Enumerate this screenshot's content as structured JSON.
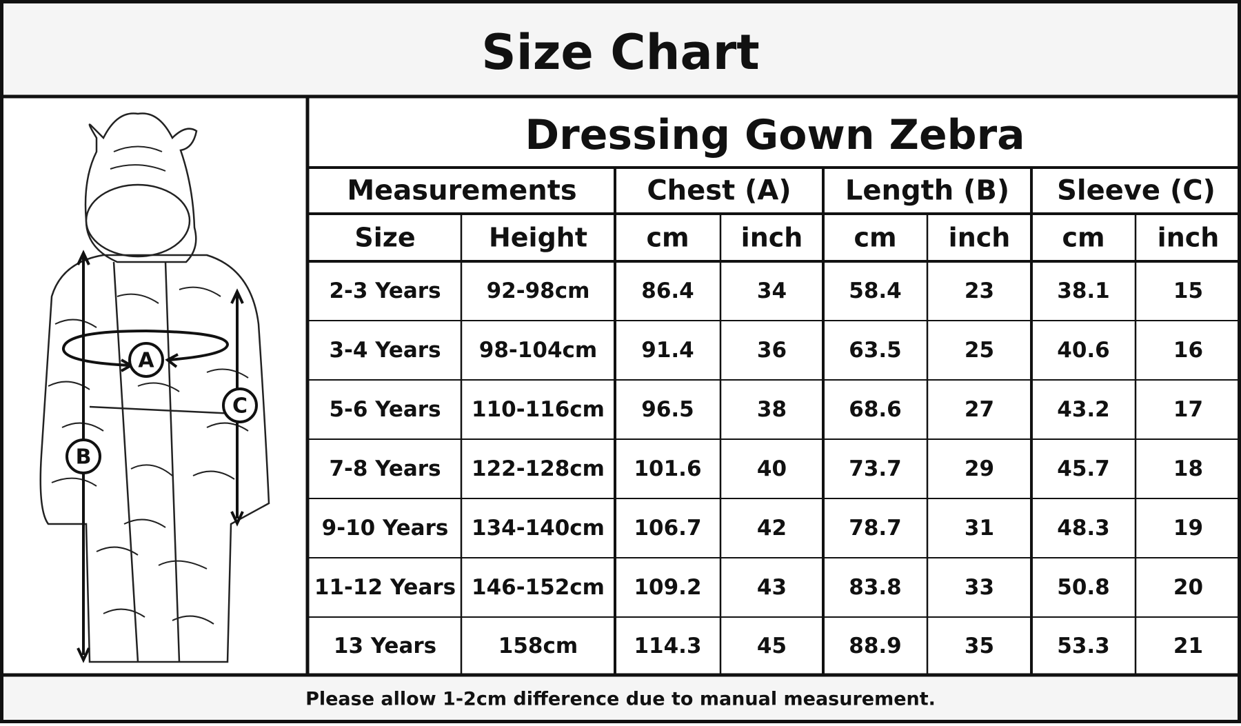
{
  "header": {
    "title": "Size Chart"
  },
  "table": {
    "title": "Dressing Gown Zebra",
    "groups": [
      "Measurements",
      "Chest (A)",
      "Length (B)",
      "Sleeve (C)"
    ],
    "columns": [
      "Size",
      "Height",
      "cm",
      "inch",
      "cm",
      "inch",
      "cm",
      "inch"
    ],
    "rows": [
      [
        "2-3 Years",
        "92-98cm",
        "86.4",
        "34",
        "58.4",
        "23",
        "38.1",
        "15"
      ],
      [
        "3-4 Years",
        "98-104cm",
        "91.4",
        "36",
        "63.5",
        "25",
        "40.6",
        "16"
      ],
      [
        "5-6 Years",
        "110-116cm",
        "96.5",
        "38",
        "68.6",
        "27",
        "43.2",
        "17"
      ],
      [
        "7-8 Years",
        "122-128cm",
        "101.6",
        "40",
        "73.7",
        "29",
        "45.7",
        "18"
      ],
      [
        "9-10 Years",
        "134-140cm",
        "106.7",
        "42",
        "78.7",
        "31",
        "48.3",
        "19"
      ],
      [
        "11-12 Years",
        "146-152cm",
        "109.2",
        "43",
        "83.8",
        "33",
        "50.8",
        "20"
      ],
      [
        "13 Years",
        "158cm",
        "114.3",
        "45",
        "88.9",
        "35",
        "53.3",
        "21"
      ]
    ]
  },
  "figure": {
    "labels": [
      "A",
      "B",
      "C"
    ]
  },
  "footer": {
    "note": "Please allow 1-2cm difference due to manual measurement."
  }
}
